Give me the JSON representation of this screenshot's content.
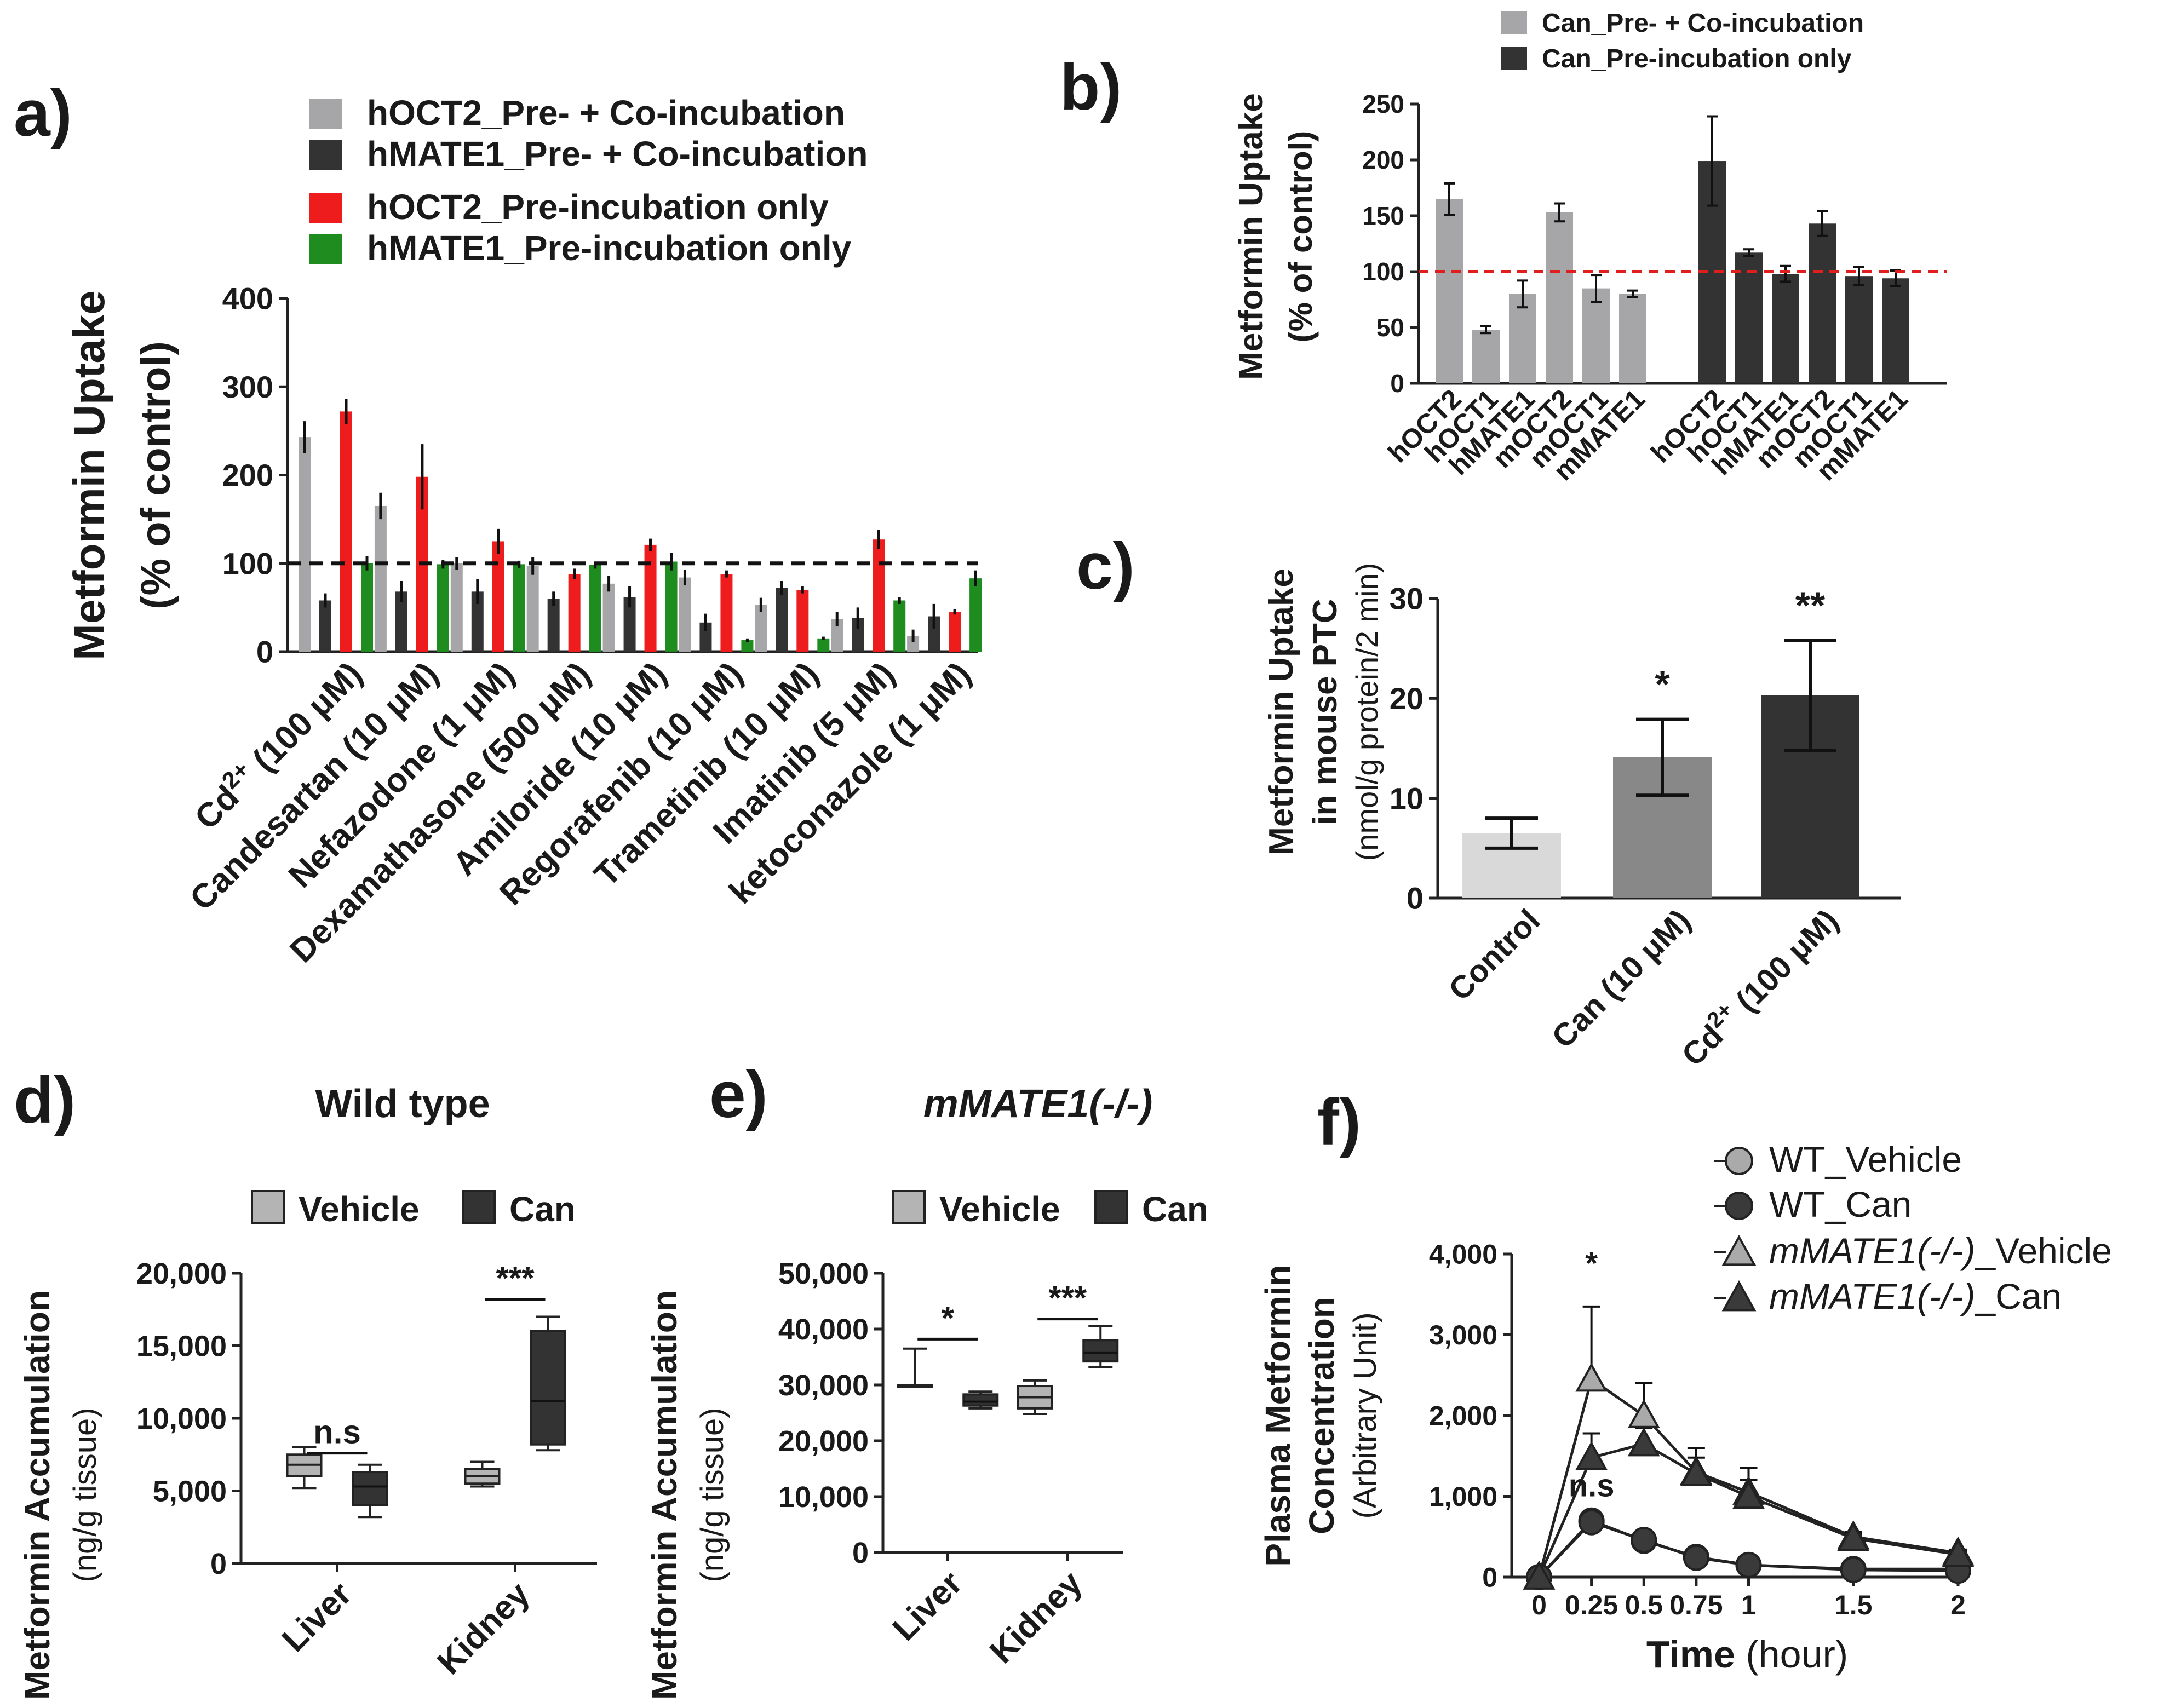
{
  "chart_data": [
    {
      "panel": "a)",
      "type": "bar",
      "ylabel": "Metformin Uptake",
      "ylabel_sub": "(% of control)",
      "ylim": [
        0,
        400
      ],
      "yticks": [
        "0",
        "100",
        "200",
        "300",
        "400"
      ],
      "reference_line": 100,
      "categories": [
        "Cd2+ (100 μM)",
        "Candesartan (10 μM)",
        "Nefazodone (1 μM)",
        "Dexamathasone (500 μM)",
        "Amiloride (10 μM)",
        "Regorafenib (10 μM)",
        "Trametinib (10 μM)",
        "Imatinib (5 μM)",
        "ketoconazole (1 μM)"
      ],
      "series": [
        {
          "name": "hOCT2_Pre- + Co-incubation",
          "color": "#a6a6a8",
          "values": [
            243,
            165,
            100,
            97,
            77,
            84,
            53,
            37,
            18
          ],
          "errors": [
            18,
            15,
            7,
            10,
            9,
            9,
            8,
            8,
            7
          ]
        },
        {
          "name": "hMATE1_Pre- + Co-incubation",
          "color": "#333333",
          "values": [
            58,
            68,
            68,
            60,
            62,
            33,
            72,
            38,
            40
          ],
          "errors": [
            8,
            12,
            14,
            8,
            12,
            10,
            8,
            12,
            14
          ]
        },
        {
          "name": "hOCT2_Pre-incubation only",
          "color": "#ee1c1c",
          "values": [
            272,
            198,
            125,
            88,
            121,
            88,
            70,
            127,
            45
          ],
          "errors": [
            14,
            37,
            14,
            6,
            7,
            4,
            4,
            11,
            3
          ]
        },
        {
          "name": "hMATE1_Pre-incubation only",
          "color": "#1e8c1e",
          "values": [
            100,
            99,
            99,
            98,
            102,
            13,
            15,
            58,
            83
          ],
          "errors": [
            8,
            5,
            4,
            4,
            10,
            2,
            2,
            4,
            9
          ]
        }
      ]
    },
    {
      "panel": "b)",
      "type": "bar",
      "ylabel": "Metformin Uptake",
      "ylabel_sub": "(% of control)",
      "ylim": [
        0,
        250
      ],
      "yticks": [
        "0",
        "50",
        "100",
        "150",
        "200",
        "250"
      ],
      "reference_line": 100,
      "categories": [
        "hOCT2",
        "hOCT1",
        "hMATE1",
        "mOCT2",
        "mOCT1",
        "mMATE1"
      ],
      "series": [
        {
          "name": "Can_Pre- + Co-incubation",
          "color": "#a6a6a8",
          "values": [
            165,
            48,
            80,
            153,
            85,
            80
          ],
          "errors": [
            14,
            3,
            12,
            8,
            12,
            3
          ]
        },
        {
          "name": "Can_Pre-incubation only",
          "color": "#333333",
          "values": [
            199,
            117,
            98,
            143,
            96,
            94
          ],
          "errors": [
            40,
            3,
            7,
            11,
            8,
            7
          ]
        }
      ]
    },
    {
      "panel": "c)",
      "type": "bar",
      "ylabel": "Metformin Uptake",
      "ylabel_sub1": "in mouse PTC",
      "ylabel_sub2": "(nmol/g protein/2 min)",
      "ylim": [
        0,
        30
      ],
      "yticks": [
        "0",
        "10",
        "20",
        "30"
      ],
      "categories": [
        "Control",
        "Can (10 μM)",
        "Cd2+ (100 μM)"
      ],
      "values": [
        6.5,
        14.1,
        20.3
      ],
      "errors": [
        1.5,
        3.8,
        5.5
      ],
      "colors": [
        "#d9d9d9",
        "#888888",
        "#333333"
      ],
      "annotations": [
        "",
        "*",
        "**"
      ]
    },
    {
      "panel": "d)",
      "type": "box",
      "title": "Wild type",
      "ylabel": "Metformin Accumulation",
      "ylabel_sub": "(ng/g tissue)",
      "ylim": [
        0,
        20000
      ],
      "yticks": [
        "0",
        "5,000",
        "10,000",
        "15,000",
        "20,000"
      ],
      "groups": [
        "Liver",
        "Kidney"
      ],
      "legend": [
        {
          "label": "Vehicle",
          "color": "#b4b4b4"
        },
        {
          "label": "Can",
          "color": "#333333"
        }
      ],
      "boxes": [
        {
          "group": "Liver",
          "series": "Vehicle",
          "min": 5200,
          "q1": 6000,
          "median": 6800,
          "q3": 7500,
          "max": 8000
        },
        {
          "group": "Liver",
          "series": "Can",
          "min": 3200,
          "q1": 4000,
          "median": 5300,
          "q3": 6300,
          "max": 6800
        },
        {
          "group": "Kidney",
          "series": "Vehicle",
          "min": 5300,
          "q1": 5500,
          "median": 6000,
          "q3": 6500,
          "max": 7000
        },
        {
          "group": "Kidney",
          "series": "Can",
          "min": 7800,
          "q1": 8200,
          "median": 11200,
          "q3": 16000,
          "max": 17000
        }
      ],
      "significance": [
        {
          "group": "Liver",
          "label": "n.s",
          "y": 7600
        },
        {
          "group": "Kidney",
          "label": "***",
          "y": 18200
        }
      ]
    },
    {
      "panel": "e)",
      "type": "box",
      "title": "mMATE1(-/-)",
      "ylabel": "Metformin Accumulation",
      "ylabel_sub": "(ng/g tissue)",
      "ylim": [
        0,
        50000
      ],
      "yticks": [
        "0",
        "10,000",
        "20,000",
        "30,000",
        "40,000",
        "50,000"
      ],
      "groups": [
        "Liver",
        "Kidney"
      ],
      "legend": [
        {
          "label": "Vehicle",
          "color": "#b4b4b4"
        },
        {
          "label": "Can",
          "color": "#333333"
        }
      ],
      "boxes": [
        {
          "group": "Liver",
          "series": "Vehicle",
          "min": 30000,
          "q1": 30000,
          "median": 30000,
          "q3": 30000,
          "max": 36500
        },
        {
          "group": "Liver",
          "series": "Can",
          "min": 25800,
          "q1": 26300,
          "median": 27000,
          "q3": 28300,
          "max": 28800
        },
        {
          "group": "Kidney",
          "series": "Vehicle",
          "min": 24800,
          "q1": 25800,
          "median": 27800,
          "q3": 29800,
          "max": 30800
        },
        {
          "group": "Kidney",
          "series": "Can",
          "min": 33200,
          "q1": 34200,
          "median": 35800,
          "q3": 38000,
          "max": 40500
        }
      ],
      "significance": [
        {
          "group": "Liver",
          "label": "*",
          "y": 38200
        },
        {
          "group": "Kidney",
          "label": "***",
          "y": 41800
        }
      ]
    },
    {
      "panel": "f)",
      "type": "line",
      "ylabel": "Plasma Metformin",
      "ylabel_sub1": "Concentration",
      "ylabel_sub2": "(Arbitrary Unit)",
      "xlabel_bold": "Time",
      "xlabel_rest": " (hour)",
      "xlim": [
        0,
        2
      ],
      "ylim": [
        0,
        4000
      ],
      "x": [
        0,
        0.25,
        0.5,
        0.75,
        1,
        1.5,
        2
      ],
      "xticks": [
        "0",
        "0.25",
        "0.5",
        "0.75",
        "1",
        "1.5",
        "2"
      ],
      "yticks": [
        "0",
        "1,000",
        "2,000",
        "3,000",
        "4,000"
      ],
      "series": [
        {
          "name": "WT_Vehicle",
          "name_italic": "",
          "name_rest": "WT_Vehicle",
          "marker": "circle",
          "color": "#aaaaaa",
          "values": [
            0,
            700,
            450,
            250,
            150,
            100,
            100
          ],
          "errors": [
            0,
            60,
            50,
            40,
            30,
            20,
            20
          ]
        },
        {
          "name": "WT_Can",
          "name_italic": "",
          "name_rest": "WT_Can",
          "marker": "circle",
          "color": "#3a3a3a",
          "values": [
            0,
            680,
            460,
            240,
            150,
            90,
            80
          ],
          "errors": [
            0,
            60,
            50,
            40,
            30,
            20,
            20
          ]
        },
        {
          "name": "mMATE1(-/-)_Vehicle",
          "name_italic": "mMATE1(-/-)",
          "name_rest": "_Vehicle",
          "marker": "triangle",
          "color": "#aaaaaa",
          "values": [
            0,
            2450,
            2000,
            1300,
            1050,
            500,
            300
          ],
          "errors": [
            0,
            900,
            400,
            300,
            300,
            60,
            40
          ]
        },
        {
          "name": "mMATE1(-/-)_Can",
          "name_italic": "mMATE1(-/-)",
          "name_rest": "_Can",
          "marker": "triangle",
          "color": "#3a3a3a",
          "values": [
            0,
            1480,
            1650,
            1280,
            1000,
            480,
            280
          ],
          "errors": [
            0,
            300,
            200,
            200,
            200,
            50,
            40
          ]
        }
      ],
      "annotations": [
        {
          "x": 0.25,
          "y": 3750,
          "label": "*"
        },
        {
          "x": 0.25,
          "y": 1000,
          "label": "n.s"
        }
      ]
    }
  ]
}
